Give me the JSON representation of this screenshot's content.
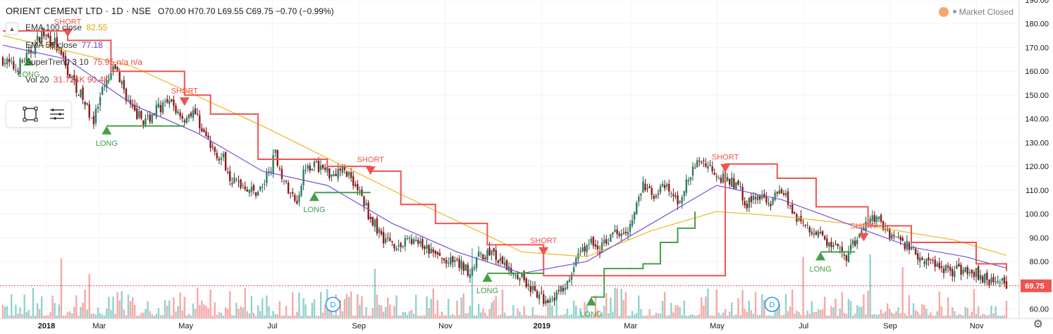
{
  "header": {
    "symbol": "ORIENT CEMENT LTD · 1D · NSE",
    "open": "O70.00",
    "high": "H70.70",
    "low": "L69.55",
    "close": "C69.75",
    "change": "−0.70 (−0.99%)"
  },
  "indicators": [
    {
      "label": "EMA 100 close",
      "value": "82.55",
      "color": "#e0a800"
    },
    {
      "label": "EMA 50 close",
      "value": "77.18",
      "color": "#6a3fc9"
    },
    {
      "label": "SuperTrend 3 10",
      "value": "75.95 n/a n/a",
      "color": "#e04848"
    },
    {
      "label": "Vol 20",
      "value": "31.724K 90.4K",
      "color": "#e04848"
    }
  ],
  "status": {
    "market": "Market Closed"
  },
  "icons": {
    "collapse": "chevron-up-icon",
    "rectangle": "rectangle-tool-icon",
    "lines": "text-lines-icon",
    "settings": "gear-icon"
  },
  "colors": {
    "up": "#26a69a",
    "down": "#ef5350",
    "candle_up": "#2a7f62",
    "candle_down": "#8b1a1a",
    "long": "#43a047",
    "short": "#ef5350"
  },
  "chart_data": {
    "type": "candlestick",
    "title": "ORIENT CEMENT LTD · 1D · NSE",
    "ylim": [
      56,
      190
    ],
    "y_ticks": [
      "190.00",
      "180.00",
      "170.00",
      "160.00",
      "150.00",
      "140.00",
      "130.00",
      "120.00",
      "110.00",
      "100.00",
      "90.00",
      "80.00",
      "70.00",
      "60.00"
    ],
    "x_ticks": [
      "2018",
      "Mar",
      "May",
      "Jul",
      "Sep",
      "Nov",
      "2019",
      "Mar",
      "May",
      "Jul",
      "Sep",
      "Nov"
    ],
    "last_price": "69.75",
    "close_path": [
      [
        0,
        165
      ],
      [
        6,
        161
      ],
      [
        12,
        167
      ],
      [
        18,
        176
      ],
      [
        24,
        172
      ],
      [
        30,
        160
      ],
      [
        36,
        150
      ],
      [
        42,
        139
      ],
      [
        46,
        151
      ],
      [
        52,
        162
      ],
      [
        56,
        152
      ],
      [
        60,
        143
      ],
      [
        66,
        139
      ],
      [
        72,
        145
      ],
      [
        78,
        146
      ],
      [
        84,
        140
      ],
      [
        88,
        144
      ],
      [
        92,
        136
      ],
      [
        96,
        128
      ],
      [
        102,
        123
      ],
      [
        106,
        114
      ],
      [
        112,
        112
      ],
      [
        116,
        109
      ],
      [
        120,
        111
      ],
      [
        126,
        125
      ],
      [
        132,
        109
      ],
      [
        136,
        106
      ],
      [
        140,
        121
      ],
      [
        146,
        120
      ],
      [
        152,
        117
      ],
      [
        156,
        119
      ],
      [
        160,
        117
      ],
      [
        166,
        107
      ],
      [
        170,
        98
      ],
      [
        176,
        90
      ],
      [
        184,
        86
      ],
      [
        188,
        90
      ],
      [
        192,
        87
      ],
      [
        198,
        84
      ],
      [
        204,
        80
      ],
      [
        210,
        79
      ],
      [
        216,
        76
      ],
      [
        220,
        82
      ],
      [
        226,
        84
      ],
      [
        230,
        79
      ],
      [
        236,
        76
      ],
      [
        240,
        74
      ],
      [
        246,
        66
      ],
      [
        250,
        64
      ],
      [
        256,
        66
      ],
      [
        262,
        71
      ],
      [
        266,
        84
      ],
      [
        272,
        88
      ],
      [
        276,
        85
      ],
      [
        282,
        92
      ],
      [
        290,
        95
      ],
      [
        296,
        112
      ],
      [
        300,
        108
      ],
      [
        306,
        111
      ],
      [
        312,
        105
      ],
      [
        318,
        116
      ],
      [
        322,
        123
      ],
      [
        328,
        119
      ],
      [
        334,
        114
      ],
      [
        340,
        112
      ],
      [
        344,
        104
      ],
      [
        350,
        108
      ],
      [
        356,
        105
      ],
      [
        360,
        111
      ],
      [
        366,
        100
      ],
      [
        370,
        96
      ],
      [
        376,
        92
      ],
      [
        380,
        89
      ],
      [
        386,
        84
      ],
      [
        390,
        82
      ],
      [
        396,
        91
      ],
      [
        402,
        99
      ],
      [
        406,
        96
      ],
      [
        410,
        92
      ],
      [
        416,
        88
      ],
      [
        420,
        86
      ],
      [
        424,
        82
      ],
      [
        428,
        80
      ],
      [
        432,
        79
      ],
      [
        436,
        77
      ],
      [
        440,
        76
      ],
      [
        446,
        77
      ],
      [
        450,
        75
      ],
      [
        454,
        73
      ],
      [
        458,
        72
      ],
      [
        462,
        71
      ],
      [
        464,
        70
      ]
    ],
    "ema100": [
      [
        0,
        175
      ],
      [
        60,
        162
      ],
      [
        120,
        137
      ],
      [
        180,
        110
      ],
      [
        240,
        84
      ],
      [
        270,
        82
      ],
      [
        300,
        93
      ],
      [
        330,
        101
      ],
      [
        360,
        99
      ],
      [
        400,
        95
      ],
      [
        440,
        89
      ],
      [
        464,
        82.55
      ]
    ],
    "ema50": [
      [
        0,
        171
      ],
      [
        30,
        165
      ],
      [
        60,
        146
      ],
      [
        90,
        134
      ],
      [
        120,
        118
      ],
      [
        150,
        112
      ],
      [
        180,
        96
      ],
      [
        210,
        84
      ],
      [
        240,
        75
      ],
      [
        270,
        80
      ],
      [
        300,
        96
      ],
      [
        330,
        112
      ],
      [
        345,
        109
      ],
      [
        360,
        106
      ],
      [
        390,
        96
      ],
      [
        420,
        86
      ],
      [
        445,
        82
      ],
      [
        464,
        77.18
      ]
    ],
    "supertrend_long": [
      [
        48,
        137
      ],
      [
        84,
        137
      ],
      [
        144,
        109
      ],
      [
        170,
        109
      ],
      [
        224,
        75
      ],
      [
        250,
        75
      ],
      [
        272,
        65
      ],
      [
        278,
        77
      ],
      [
        296,
        79
      ],
      [
        304,
        88
      ],
      [
        312,
        94
      ],
      [
        320,
        101
      ],
      [
        330,
        105
      ],
      [
        346,
        105
      ],
      [
        378,
        84
      ],
      [
        394,
        84
      ]
    ],
    "supertrend_short": [
      [
        0,
        177
      ],
      [
        14,
        177
      ],
      [
        30,
        173
      ],
      [
        50,
        160
      ],
      [
        84,
        150
      ],
      [
        96,
        142
      ],
      [
        118,
        123
      ],
      [
        150,
        120
      ],
      [
        170,
        118
      ],
      [
        184,
        104
      ],
      [
        200,
        96
      ],
      [
        224,
        87
      ],
      [
        250,
        74
      ],
      [
        264,
        74
      ],
      [
        334,
        121
      ],
      [
        358,
        115
      ],
      [
        376,
        103
      ],
      [
        400,
        95
      ],
      [
        420,
        88
      ],
      [
        450,
        79
      ],
      [
        464,
        76
      ]
    ],
    "signals": [
      {
        "type": "LONG",
        "i": 48,
        "price": 137
      },
      {
        "type": "SHORT",
        "i": 30,
        "price": 178
      },
      {
        "type": "LONG",
        "i": 12,
        "price": 166
      },
      {
        "type": "SHORT",
        "i": 84,
        "price": 149
      },
      {
        "type": "LONG",
        "i": 144,
        "price": 109
      },
      {
        "type": "SHORT",
        "i": 170,
        "price": 120
      },
      {
        "type": "LONG",
        "i": 224,
        "price": 75
      },
      {
        "type": "SHORT",
        "i": 250,
        "price": 86
      },
      {
        "type": "LONG",
        "i": 272,
        "price": 65
      },
      {
        "type": "SHORT",
        "i": 334,
        "price": 121
      },
      {
        "type": "LONG",
        "i": 378,
        "price": 84
      },
      {
        "type": "SHORT",
        "i": 398,
        "price": 92
      }
    ],
    "dividend_markers": [
      {
        "i": 150,
        "label": "D"
      },
      {
        "i": 353,
        "label": "D"
      }
    ]
  }
}
